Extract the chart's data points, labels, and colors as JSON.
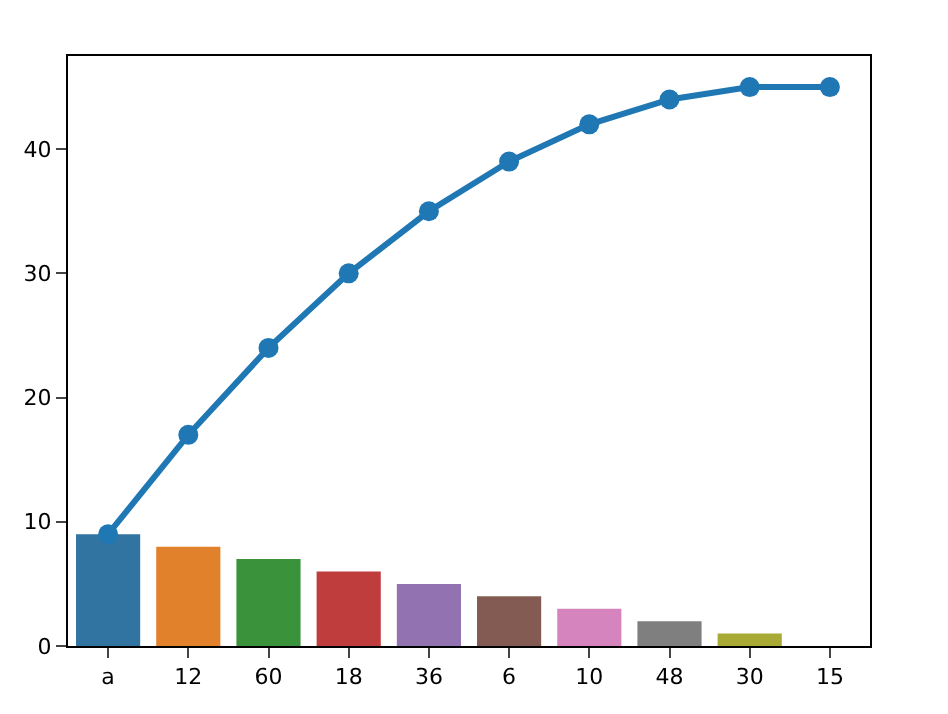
{
  "chart_data": {
    "type": "bar",
    "categories": [
      "a",
      "12",
      "60",
      "18",
      "36",
      "6",
      "10",
      "48",
      "30",
      "15"
    ],
    "series": [
      {
        "colors": [
          "#3274a1",
          "#e1812c",
          "#3a923a",
          "#c03d3e",
          "#9372b2",
          "#845b53",
          "#d684bd",
          "#7f7f7f",
          "#a9aa35",
          "#2eb7c9"
        ],
        "values": [
          9,
          8,
          7,
          6,
          5,
          4,
          3,
          2,
          1,
          0
        ]
      },
      {
        "type": "line",
        "color": "#1f77b4",
        "values": [
          9,
          17,
          24,
          30,
          35,
          39,
          42,
          44,
          45,
          45
        ]
      }
    ],
    "marker": "circle",
    "ylim": [
      0,
      47.5
    ],
    "yticks": [
      0,
      10,
      20,
      30,
      40
    ]
  }
}
